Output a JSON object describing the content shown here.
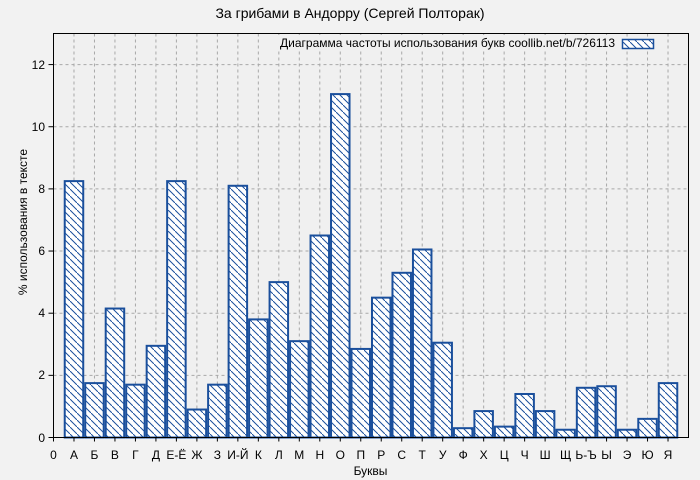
{
  "colors": {
    "background": "#f2f2f2",
    "plot_background": "#f0f0f0",
    "bar": "#1a4f9c",
    "bar_fill": "#ffffff",
    "grid": "#a8a8a8",
    "axis": "#000000",
    "text": "#000000"
  },
  "chart_data": {
    "type": "bar",
    "title": "За грибами в Андорру (Сергей Полторак)",
    "legend_label": "Диаграмма частоты использования букв coollib.net/b/726113",
    "legend_position": "top-right",
    "xlabel": "Буквы",
    "ylabel": "% использования в тексте",
    "categories": [
      "0",
      "А",
      "Б",
      "В",
      "Г",
      "Д",
      "Е-Ё",
      "Ж",
      "З",
      "И-Й",
      "К",
      "Л",
      "М",
      "Н",
      "О",
      "П",
      "Р",
      "С",
      "Т",
      "У",
      "Ф",
      "Х",
      "Ц",
      "Ч",
      "Ш",
      "Щ",
      "Ь-Ъ",
      "Ы",
      "Э",
      "Ю",
      "Я"
    ],
    "values": [
      0,
      8.25,
      1.75,
      4.15,
      1.7,
      2.95,
      8.25,
      0.9,
      1.7,
      8.1,
      3.8,
      5.0,
      3.1,
      6.5,
      11.05,
      2.85,
      4.5,
      5.3,
      6.05,
      3.05,
      0.3,
      0.85,
      0.35,
      1.4,
      0.85,
      0.25,
      1.6,
      1.65,
      0.25,
      0.6,
      1.75
    ],
    "yticks": [
      0,
      2,
      4,
      6,
      8,
      10,
      12
    ],
    "ylim": [
      0,
      13
    ],
    "grid": true,
    "hatch": "diagonal-backslash"
  }
}
